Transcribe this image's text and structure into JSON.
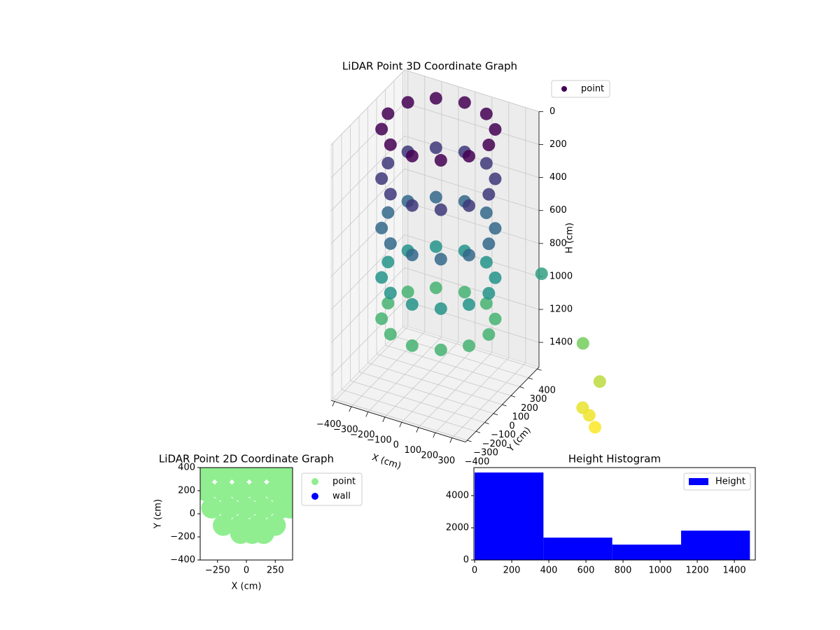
{
  "chart_data": [
    {
      "type": "scatter3d",
      "title": "LiDAR Point 3D Coordinate Graph",
      "xlabel": "X (cm)",
      "ylabel": "Y (cm)",
      "zlabel": "H (cm)",
      "colormap": "viridis",
      "zinverted": true,
      "series": [
        {
          "name": "point",
          "color": "#440154",
          "x": [
            300,
            260,
            150,
            0,
            -150,
            -260,
            -300,
            -260,
            -150,
            0,
            150,
            260,
            300,
            260,
            150,
            0,
            -150,
            -260,
            -300,
            -260,
            -150,
            0,
            150,
            260,
            300,
            260,
            150,
            0,
            -150,
            -260,
            -300,
            -260,
            -150,
            0,
            150,
            260,
            300,
            260,
            150,
            0,
            -150,
            -260,
            -300,
            -260,
            -150,
            0,
            150,
            260,
            300,
            260,
            150,
            0,
            -150,
            -260,
            -300,
            -260,
            -150,
            0,
            150,
            260,
            380,
            600,
            700,
            650,
            700,
            750
          ],
          "y": [
            0,
            150,
            260,
            300,
            260,
            150,
            0,
            -150,
            -260,
            -300,
            -260,
            -150,
            0,
            150,
            260,
            300,
            260,
            150,
            0,
            -150,
            -260,
            -300,
            -260,
            -150,
            0,
            150,
            260,
            300,
            260,
            150,
            0,
            -150,
            -260,
            -300,
            -260,
            -150,
            0,
            150,
            260,
            300,
            260,
            150,
            0,
            -150,
            -260,
            -300,
            -260,
            -150,
            0,
            150,
            260,
            300,
            260,
            150,
            0,
            -150,
            -260,
            -300,
            -260,
            -150,
            450,
            500,
            500,
            400,
            380,
            350
          ],
          "z": [
            0,
            0,
            0,
            0,
            0,
            0,
            0,
            0,
            0,
            0,
            0,
            0,
            300,
            300,
            300,
            300,
            300,
            300,
            300,
            300,
            300,
            300,
            300,
            300,
            600,
            600,
            600,
            600,
            600,
            600,
            600,
            600,
            600,
            600,
            600,
            600,
            900,
            900,
            900,
            900,
            900,
            900,
            900,
            900,
            900,
            900,
            900,
            900,
            1150,
            1150,
            1150,
            1150,
            1150,
            1150,
            1150,
            1150,
            1150,
            1150,
            1150,
            1150,
            1000,
            1380,
            1580,
            1700,
            1720,
            1760
          ]
        }
      ],
      "xlim": [
        -420,
        380
      ],
      "ylim": [
        -420,
        420
      ],
      "zlim": [
        0,
        1550
      ],
      "xticks": [
        {
          "value": -400,
          "label": "−400"
        },
        {
          "value": -300,
          "label": "−300"
        },
        {
          "value": -200,
          "label": "−200"
        },
        {
          "value": -100,
          "label": "−100"
        },
        0,
        100,
        200,
        300
      ],
      "yticks": [
        {
          "value": -400,
          "label": "−400"
        },
        {
          "value": -300,
          "label": "−300"
        },
        {
          "value": -200,
          "label": "−200"
        },
        {
          "value": -100,
          "label": "−100"
        },
        0,
        100,
        200,
        300,
        400
      ],
      "zticks": [
        0,
        200,
        400,
        600,
        800,
        1000,
        1200,
        1400
      ],
      "grid": true,
      "legend": "upper right"
    },
    {
      "type": "scatter",
      "title": "LiDAR Point 2D Coordinate Graph",
      "xlabel": "X (cm)",
      "ylabel": "Y (cm)",
      "series": [
        {
          "name": "point",
          "color": "#90ee90",
          "x": [
            -350,
            -200,
            -50,
            100,
            250,
            350,
            -350,
            -200,
            -50,
            100,
            250,
            350,
            -300,
            -150,
            0,
            150,
            300,
            380,
            -200,
            -50,
            100,
            250,
            -50,
            50,
            150
          ],
          "y": [
            350,
            350,
            350,
            350,
            350,
            350,
            200,
            200,
            200,
            200,
            200,
            200,
            50,
            50,
            50,
            50,
            50,
            50,
            -100,
            -100,
            -100,
            -100,
            -170,
            -170,
            -170
          ]
        },
        {
          "name": "wall",
          "color": "#0000ff",
          "x": [],
          "y": []
        }
      ],
      "xlim": [
        -400,
        400
      ],
      "ylim": [
        -400,
        400
      ],
      "xticks": [
        {
          "value": -250,
          "label": "−250"
        },
        0,
        250
      ],
      "yticks": [
        {
          "value": -400,
          "label": "−400"
        },
        {
          "value": -200,
          "label": "−200"
        },
        0,
        200,
        400
      ],
      "legend": "outside right"
    },
    {
      "type": "histogram",
      "title": "Height Histogram",
      "series": [
        {
          "name": "Height",
          "color": "#0000ff"
        }
      ],
      "bins": [
        0,
        371,
        742,
        1113,
        1484
      ],
      "values": [
        5435,
        1391,
        957,
        1826
      ],
      "xlim": [
        -4,
        1513
      ],
      "ylim": [
        0,
        5739
      ],
      "xticks": [
        0,
        200,
        400,
        600,
        800,
        1000,
        1200,
        1400
      ],
      "yticks": [
        0,
        2000,
        4000
      ],
      "legend": "upper right"
    }
  ]
}
